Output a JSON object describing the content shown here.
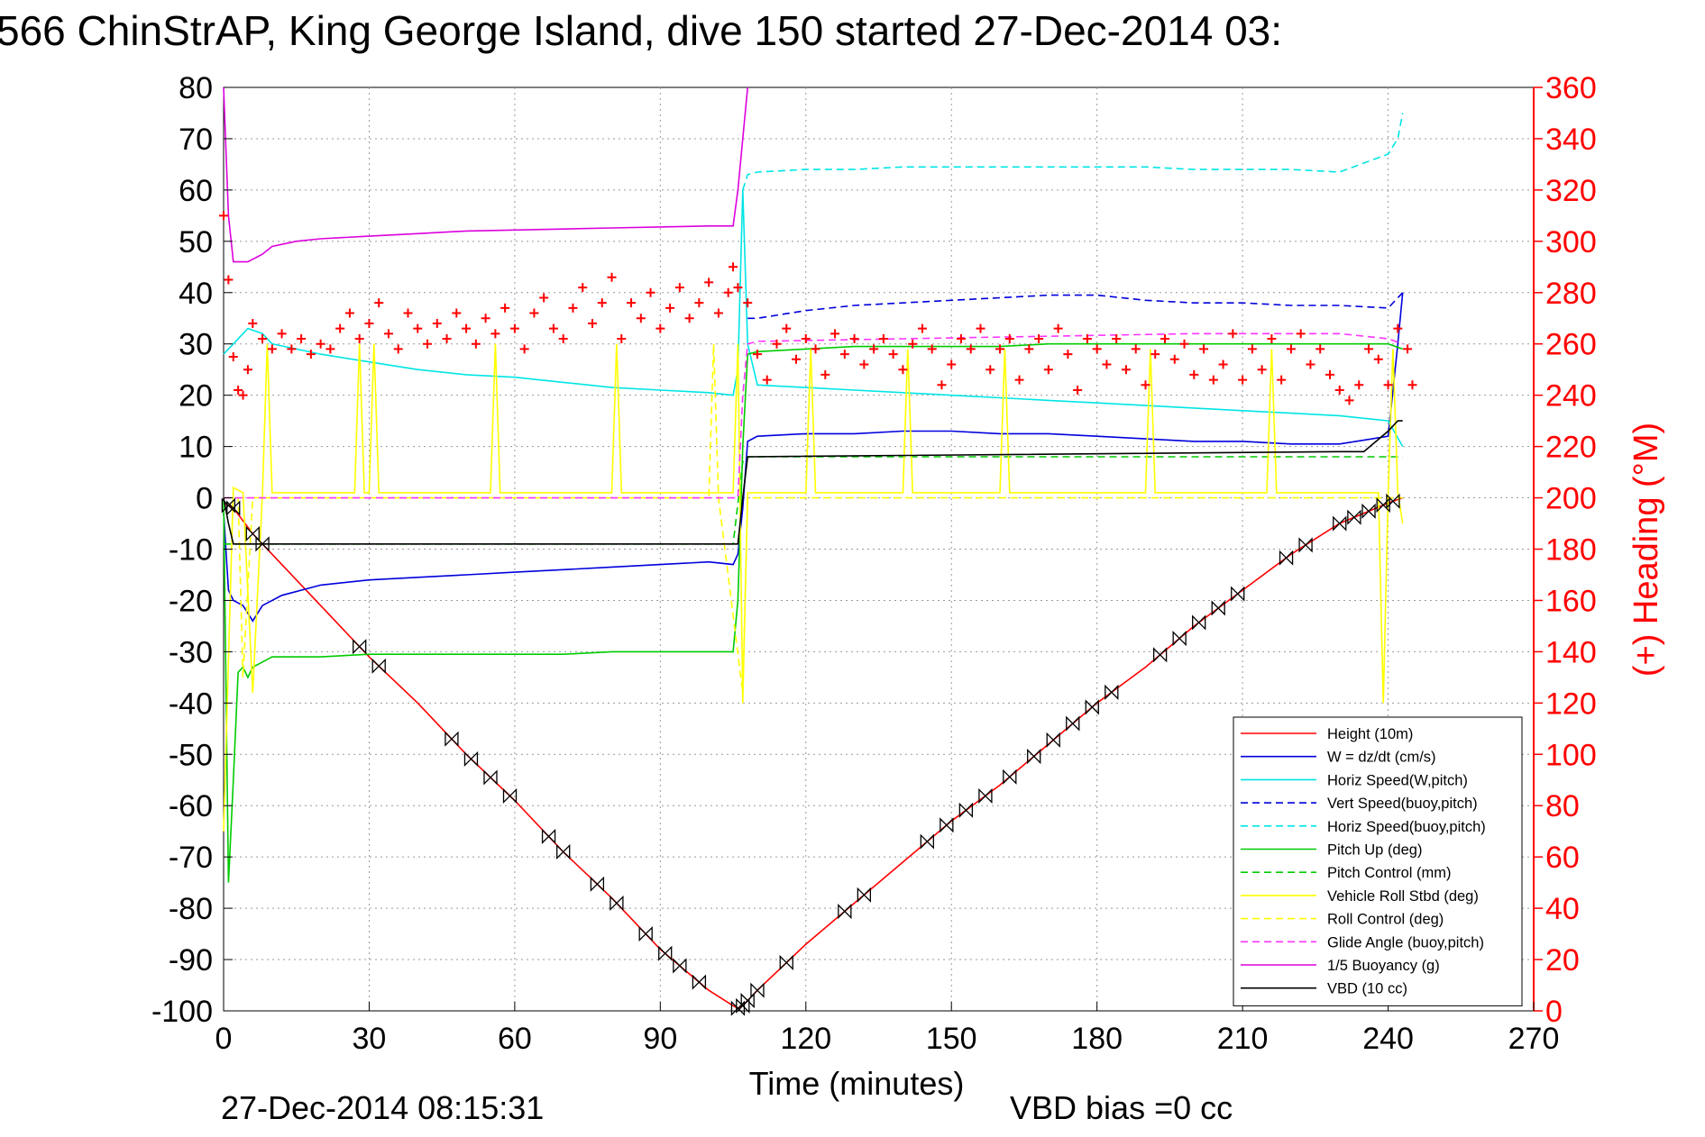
{
  "chart_data": {
    "type": "line",
    "title": "566 ChinStrAP, King George Island, dive 150 started 27-Dec-2014 03:",
    "xlabel": "Time (minutes)",
    "ylabel": "",
    "y2label": "(+) Heading (°M)",
    "footer_left": "27-Dec-2014 08:15:31",
    "footer_right": "VBD bias =0 cc",
    "xlim": [
      0,
      270
    ],
    "ylim": [
      -100,
      80
    ],
    "y2lim": [
      0,
      360
    ],
    "xticks": [
      "0",
      "30",
      "60",
      "90",
      "120",
      "150",
      "180",
      "210",
      "240",
      "270"
    ],
    "yticks": [
      "80",
      "70",
      "60",
      "50",
      "40",
      "30",
      "20",
      "10",
      "0",
      "-10",
      "-20",
      "-30",
      "-40",
      "-50",
      "-60",
      "-70",
      "-80",
      "-90",
      "-100"
    ],
    "y2ticks": [
      "360",
      "340",
      "320",
      "300",
      "280",
      "260",
      "240",
      "220",
      "200",
      "180",
      "160",
      "140",
      "120",
      "100",
      "80",
      "60",
      "40",
      "20",
      "0"
    ],
    "grid": true,
    "legend_position": "bottom-right",
    "colors": {
      "height": "#ff0000",
      "w": "#0000dd",
      "horiz": "#00e5e5",
      "pitch": "#00cc00",
      "roll": "#ffff00",
      "glide": "#ff33ff",
      "buoy": "#dd00dd",
      "vbd": "#000000",
      "heading": "#ff0000",
      "right_axis": "#ff0000"
    },
    "series": [
      {
        "name": "Height (10m)",
        "key": "height",
        "style": "solid",
        "x": [
          0,
          2,
          6,
          10,
          20,
          30,
          40,
          50,
          60,
          70,
          80,
          90,
          100,
          105,
          106,
          107,
          108,
          110,
          120,
          130,
          140,
          150,
          160,
          170,
          180,
          190,
          200,
          210,
          220,
          230,
          240,
          243
        ],
        "y": [
          -1,
          -2,
          -7,
          -11,
          -21,
          -31,
          -40,
          -50,
          -59,
          -69,
          -78,
          -88,
          -96,
          -99,
          -99.5,
          -99,
          -98,
          -96,
          -87,
          -79,
          -71,
          -63,
          -56,
          -48,
          -40,
          -33,
          -25,
          -18,
          -11,
          -5,
          -1,
          0
        ]
      },
      {
        "name": "W = dz/dt (cm/s)",
        "key": "w",
        "style": "solid",
        "x": [
          0,
          1,
          2,
          4,
          6,
          8,
          12,
          20,
          30,
          40,
          50,
          60,
          70,
          80,
          90,
          100,
          105,
          106,
          107,
          108,
          110,
          120,
          130,
          140,
          150,
          160,
          170,
          180,
          190,
          200,
          210,
          220,
          230,
          240,
          242,
          243
        ],
        "y": [
          -3,
          -18,
          -20,
          -21,
          -24,
          -21,
          -19,
          -17,
          -16,
          -15.5,
          -15,
          -14.5,
          -14,
          -13.5,
          -13,
          -12.5,
          -13,
          -11,
          -2,
          11,
          12,
          12.5,
          12.5,
          13,
          13,
          12.5,
          12.5,
          12,
          11.5,
          11,
          11,
          10.5,
          10.5,
          12,
          30,
          40
        ]
      },
      {
        "name": "Horiz Speed(W,pitch)",
        "key": "horiz",
        "style": "solid",
        "x": [
          0,
          2,
          5,
          8,
          10,
          15,
          20,
          30,
          40,
          50,
          60,
          70,
          80,
          90,
          100,
          105,
          106,
          107,
          108,
          110,
          120,
          130,
          140,
          150,
          160,
          170,
          180,
          190,
          200,
          210,
          220,
          230,
          240,
          243
        ],
        "y": [
          28,
          30,
          33,
          32,
          30,
          29,
          28,
          26.5,
          25,
          24,
          23.5,
          22.5,
          21.5,
          21,
          20.5,
          20,
          25,
          60,
          30,
          22,
          21.5,
          21,
          20.5,
          20,
          19.5,
          19,
          18.5,
          18,
          17.5,
          17,
          16.5,
          16,
          15,
          10
        ]
      },
      {
        "name": "Vert Speed(buoy,pitch)",
        "key": "w",
        "style": "dashed",
        "x": [
          108,
          110,
          120,
          130,
          140,
          150,
          160,
          170,
          180,
          190,
          200,
          210,
          220,
          230,
          240,
          243
        ],
        "y": [
          35,
          35,
          36.5,
          37.5,
          38,
          38.5,
          39,
          39.5,
          39.5,
          38.5,
          38,
          38,
          37.5,
          37.5,
          37,
          40
        ]
      },
      {
        "name": "Horiz Speed(buoy,pitch)",
        "key": "horiz",
        "style": "dashed",
        "x": [
          107,
          108,
          110,
          120,
          130,
          140,
          150,
          160,
          170,
          180,
          190,
          200,
          210,
          220,
          230,
          240,
          242,
          243
        ],
        "y": [
          60,
          63,
          63.5,
          64,
          64,
          64.5,
          64.5,
          64.5,
          64.5,
          64.5,
          64.5,
          64,
          64,
          64,
          63.5,
          67,
          70,
          75
        ]
      },
      {
        "name": "Pitch Up (deg)",
        "key": "pitch",
        "style": "solid",
        "x": [
          0,
          1,
          2,
          3,
          4,
          5,
          6,
          8,
          10,
          20,
          30,
          40,
          50,
          60,
          70,
          80,
          90,
          100,
          105,
          106,
          107,
          108,
          110,
          120,
          130,
          140,
          150,
          160,
          170,
          180,
          190,
          200,
          210,
          220,
          230,
          240,
          243
        ],
        "y": [
          0,
          -75,
          -55,
          -34,
          -33,
          -35,
          -33,
          -32,
          -31,
          -31,
          -30.5,
          -30.5,
          -30.5,
          -30.5,
          -30.5,
          -30,
          -30,
          -30,
          -30,
          -20,
          10,
          28,
          28.5,
          29,
          29.5,
          29.5,
          29.5,
          29.5,
          30,
          30,
          30,
          30,
          30,
          30,
          30,
          30,
          29
        ]
      },
      {
        "name": "Pitch Control (mm)",
        "key": "pitch",
        "style": "dashed",
        "x": [
          0,
          2,
          105,
          107,
          108,
          243
        ],
        "y": [
          -9,
          -9,
          -9,
          7,
          8,
          8
        ]
      },
      {
        "name": "Vehicle Roll Stbd (deg)",
        "key": "roll",
        "style": "solid",
        "x": [
          0,
          2,
          4,
          6,
          8,
          9,
          10,
          27,
          28,
          29,
          30,
          31,
          32,
          33,
          55,
          56,
          57,
          80,
          81,
          82,
          105,
          106,
          107,
          108,
          120,
          121,
          122,
          140,
          141,
          142,
          160,
          161,
          162,
          190,
          191,
          192,
          215,
          216,
          217,
          238,
          239,
          240,
          241,
          242,
          243
        ],
        "y": [
          -65,
          2,
          1,
          -38,
          1,
          30,
          1,
          1,
          30,
          1,
          1,
          30,
          1,
          1,
          1,
          30,
          1,
          1,
          30,
          1,
          1,
          30,
          -40,
          1,
          1,
          29,
          1,
          1,
          29,
          1,
          1,
          29,
          1,
          1,
          29,
          1,
          1,
          29,
          1,
          1,
          -40,
          1,
          29,
          1,
          -5
        ]
      },
      {
        "name": "Roll Control (deg)",
        "key": "roll",
        "style": "dashed",
        "x": [
          0,
          3,
          4,
          6,
          7,
          100,
          101,
          102,
          107,
          108,
          243
        ],
        "y": [
          0,
          0,
          -35,
          0,
          0,
          0,
          30,
          0,
          -38,
          0,
          0
        ]
      },
      {
        "name": "Glide Angle (buoy,pitch)",
        "key": "glide",
        "style": "dashed",
        "x": [
          0,
          106,
          107,
          108,
          110,
          140,
          170,
          200,
          230,
          240,
          243
        ],
        "y": [
          0,
          0,
          20,
          30,
          30.5,
          31,
          31.5,
          32,
          32,
          31,
          30
        ]
      },
      {
        "name": "1/5 Buoyancy (g)",
        "key": "buoy",
        "style": "solid",
        "x": [
          0,
          1,
          2,
          5,
          8,
          10,
          15,
          20,
          30,
          40,
          50,
          60,
          70,
          80,
          90,
          100,
          105,
          106,
          107,
          108
        ],
        "y": [
          80,
          55,
          46,
          46,
          47.5,
          49,
          50,
          50.5,
          51,
          51.5,
          52,
          52.2,
          52.4,
          52.6,
          52.8,
          53,
          53,
          60,
          70,
          80
        ]
      },
      {
        "name": "VBD (10 cc)",
        "key": "vbd",
        "style": "solid",
        "x": [
          0,
          1,
          2,
          105,
          106,
          107,
          108,
          230,
          235,
          240,
          242,
          243
        ],
        "y": [
          0,
          -5,
          -9,
          -9,
          -9,
          0,
          8,
          9,
          9,
          13,
          15,
          15
        ]
      }
    ],
    "heading_series": {
      "key": "heading",
      "marker": "+",
      "x": [
        0,
        1,
        2,
        3,
        4,
        5,
        6,
        8,
        10,
        12,
        14,
        16,
        18,
        20,
        22,
        24,
        26,
        28,
        30,
        32,
        34,
        36,
        38,
        40,
        42,
        44,
        46,
        48,
        50,
        52,
        54,
        56,
        58,
        60,
        62,
        64,
        66,
        68,
        70,
        72,
        74,
        76,
        78,
        80,
        82,
        84,
        86,
        88,
        90,
        92,
        94,
        96,
        98,
        100,
        102,
        104,
        105,
        106,
        108,
        110,
        112,
        114,
        116,
        118,
        120,
        122,
        124,
        126,
        128,
        130,
        132,
        134,
        136,
        138,
        140,
        142,
        144,
        146,
        148,
        150,
        152,
        154,
        156,
        158,
        160,
        162,
        164,
        166,
        168,
        170,
        172,
        174,
        176,
        178,
        180,
        182,
        184,
        186,
        188,
        190,
        192,
        194,
        196,
        198,
        200,
        202,
        204,
        206,
        208,
        210,
        212,
        214,
        216,
        218,
        220,
        222,
        224,
        226,
        228,
        230,
        232,
        234,
        236,
        238,
        240,
        242,
        244,
        245
      ],
      "y": [
        310,
        285,
        255,
        242,
        240,
        250,
        268,
        262,
        258,
        264,
        258,
        262,
        256,
        260,
        258,
        266,
        272,
        262,
        268,
        276,
        264,
        258,
        272,
        266,
        260,
        268,
        262,
        272,
        266,
        260,
        270,
        264,
        274,
        266,
        258,
        272,
        278,
        266,
        262,
        274,
        282,
        268,
        276,
        286,
        262,
        276,
        270,
        280,
        266,
        274,
        282,
        270,
        276,
        284,
        272,
        280,
        290,
        282,
        276,
        256,
        246,
        260,
        266,
        254,
        262,
        258,
        248,
        264,
        256,
        262,
        252,
        258,
        262,
        256,
        250,
        260,
        266,
        258,
        244,
        252,
        262,
        258,
        266,
        250,
        258,
        262,
        246,
        258,
        262,
        250,
        266,
        256,
        242,
        262,
        258,
        252,
        262,
        250,
        258,
        244,
        256,
        262,
        254,
        260,
        248,
        258,
        246,
        252,
        264,
        246,
        258,
        250,
        262,
        246,
        258,
        264,
        252,
        258,
        248,
        242,
        238,
        244,
        258,
        254,
        244,
        266,
        258,
        244
      ]
    },
    "depth_markers": [
      1,
      2,
      6,
      8,
      28,
      32,
      47,
      51,
      55,
      59,
      67,
      70,
      77,
      81,
      87,
      91,
      94,
      98,
      106,
      107,
      108,
      110,
      116,
      128,
      132,
      145,
      149,
      153,
      157,
      162,
      167,
      171,
      175,
      179,
      183,
      193,
      197,
      201,
      205,
      209,
      219,
      223,
      230,
      233,
      236,
      239,
      241
    ]
  }
}
